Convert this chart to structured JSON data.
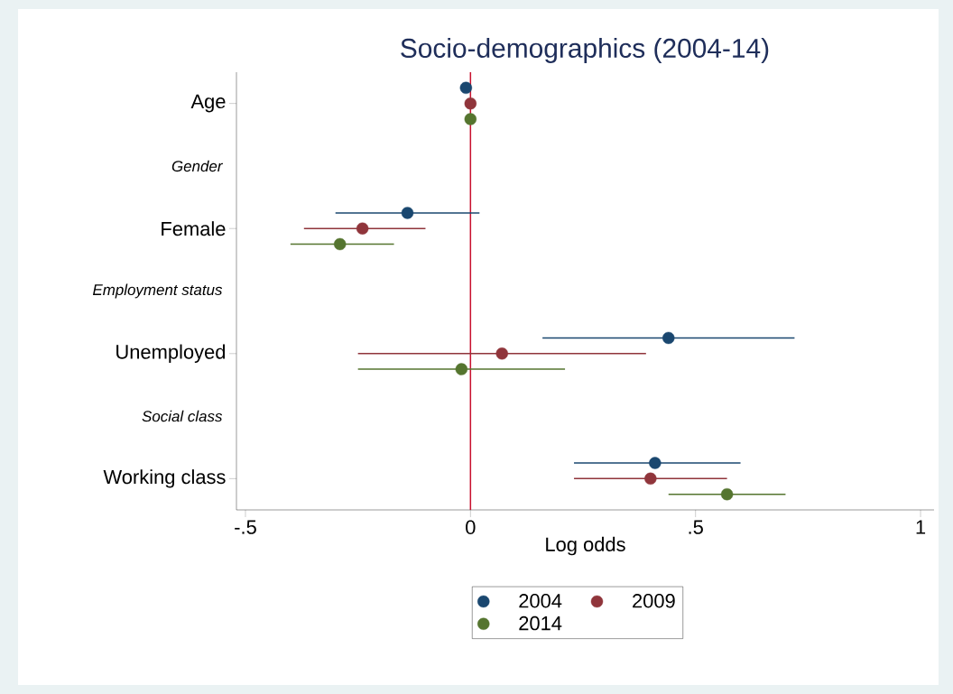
{
  "chart_data": {
    "type": "scatter",
    "orientation": "horizontal",
    "title": "Socio-demographics (2004-14)",
    "xlabel": "Log odds",
    "categories": [
      "Age",
      "Gender",
      "Female",
      "Employment status",
      "Unemployed",
      "Social class",
      "Working class"
    ],
    "series": [
      {
        "name": "2004",
        "color": "#1a476f",
        "values": [
          -0.01,
          null,
          -0.14,
          null,
          0.44,
          null,
          0.41
        ],
        "errors": [
          null,
          null,
          [
            -0.3,
            0.02
          ],
          null,
          [
            0.16,
            0.72
          ],
          null,
          [
            0.23,
            0.6
          ]
        ]
      },
      {
        "name": "2009",
        "color": "#90353b",
        "values": [
          0,
          null,
          -0.24,
          null,
          0.07,
          null,
          0.4
        ],
        "errors": [
          null,
          null,
          [
            -0.37,
            -0.1
          ],
          null,
          [
            -0.25,
            0.39
          ],
          null,
          [
            0.23,
            0.57
          ]
        ]
      },
      {
        "name": "2014",
        "color": "#55752f",
        "values": [
          0,
          null,
          -0.29,
          null,
          -0.02,
          null,
          0.57
        ],
        "errors": [
          null,
          null,
          [
            -0.4,
            -0.17
          ],
          null,
          [
            -0.25,
            0.21
          ],
          null,
          [
            0.44,
            0.7
          ]
        ]
      }
    ],
    "xlim": [
      -0.52,
      1.03
    ],
    "xticks": [
      {
        "value": -0.5,
        "label": "-.5"
      },
      0,
      {
        "value": 0.5,
        "label": ".5"
      },
      1
    ],
    "ref_lines": [
      {
        "axis": "x",
        "value": 0,
        "color": "#c8102e"
      }
    ],
    "legend": "bottom",
    "grid": false
  }
}
